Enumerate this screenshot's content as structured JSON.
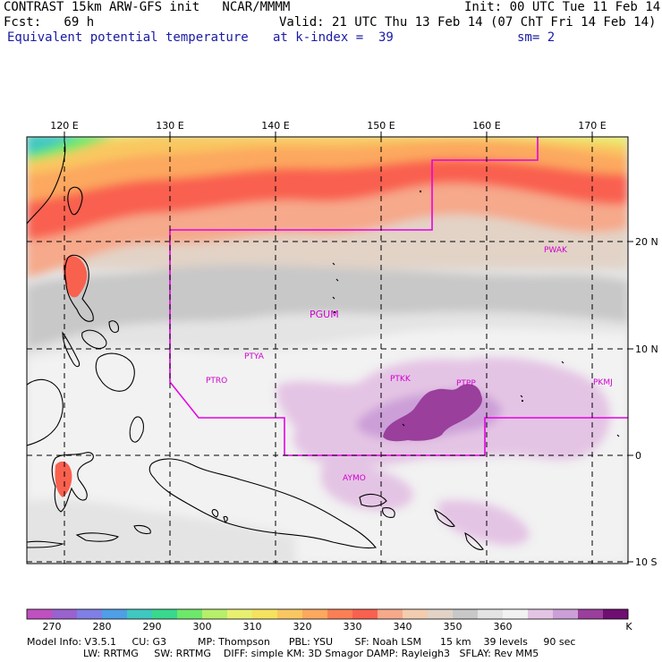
{
  "header": {
    "line1_left": "CONTRAST 15km ARW-GFS init   NCAR/MMMM",
    "line1_right": "Init: 00 UTC Tue 11 Feb 14",
    "line2_left": "Fcst:   69 h",
    "line2_right": "Valid: 21 UTC Thu 13 Feb 14 (07 ChT Fri 14 Feb 14)",
    "line3_left": "Equivalent potential temperature",
    "line3_mid": "at k-index =  39",
    "line3_right": "sm= 2"
  },
  "axes": {
    "lon_labels": [
      "120 E",
      "130 E",
      "140 E",
      "150 E",
      "160 E",
      "170 E"
    ],
    "lat_labels": [
      "20 N",
      "10 N",
      "0",
      "10 S"
    ]
  },
  "stations": [
    "PWAK",
    "PGUM",
    "PTYA",
    "PTRO",
    "PTKK",
    "PTPP",
    "PKMJ",
    "AYMO"
  ],
  "colorbar": {
    "ticks": [
      "270",
      "280",
      "290",
      "300",
      "310",
      "320",
      "330",
      "340",
      "350",
      "360"
    ],
    "unit": "K",
    "colors": [
      "#c050c0",
      "#9a62cf",
      "#7f7fe6",
      "#4f9fe6",
      "#3fc7c0",
      "#38d88e",
      "#6ee86a",
      "#b6ef6a",
      "#e9ef70",
      "#f5e25e",
      "#f9c761",
      "#fca85e",
      "#fb7f55",
      "#f9614f",
      "#f6a98b",
      "#f2cdb0",
      "#e2d3c6",
      "#c8c8c8",
      "#e4e4e4",
      "#f2f2f2",
      "#e4c4e4",
      "#cc9fd8",
      "#9a3f9c",
      "#6f0f72"
    ]
  },
  "model_info": {
    "line1": "Model Info: V3.5.1     CU: G3          MP: Thompson      PBL: YSU       SF: Noah LSM      15 km    39 levels     90 sec",
    "line2": "LW: RRTMG     SW: RRTMG    DIFF: simple KM: 3D Smagor DAMP: Rayleigh3   SFLAY: Rev MM5"
  }
}
